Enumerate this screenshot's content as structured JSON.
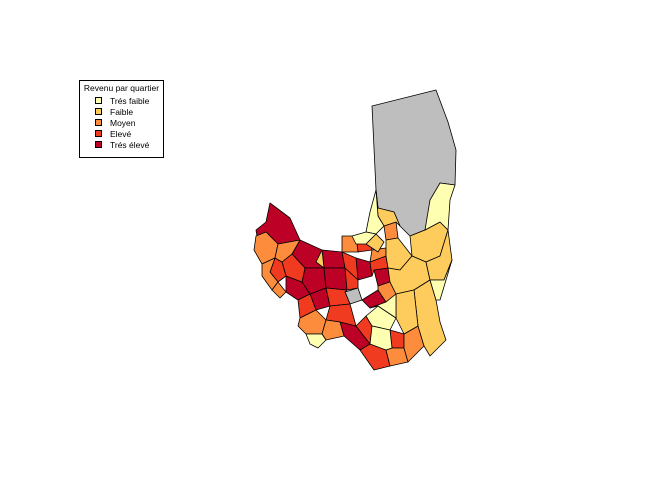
{
  "legend": {
    "title": "Revenu par quartier",
    "items": [
      {
        "label": "Trés faible",
        "color": "#FFFFB2"
      },
      {
        "label": "Faible",
        "color": "#FECC5C"
      },
      {
        "label": "Moyen",
        "color": "#FD8D3C"
      },
      {
        "label": "Elevé",
        "color": "#F03B20"
      },
      {
        "label": "Trés élevé",
        "color": "#BD0026"
      }
    ]
  },
  "colors": {
    "no_data": "#BEBEBE",
    "border": "#000000"
  }
}
